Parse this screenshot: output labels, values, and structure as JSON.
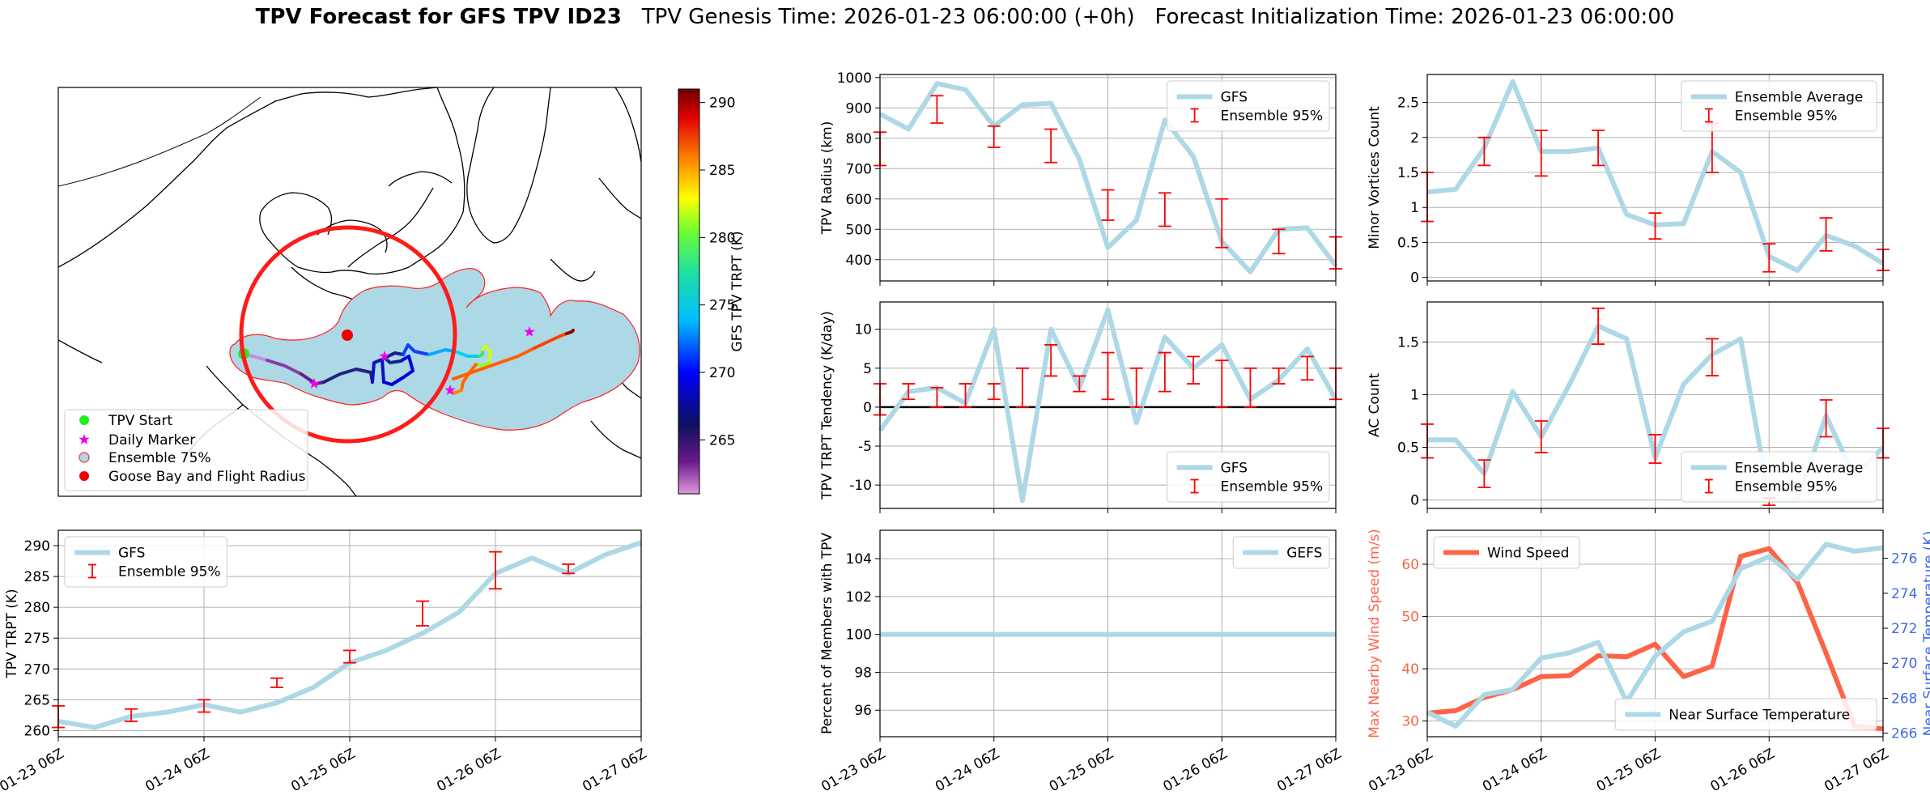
{
  "title": {
    "bold": "TPV Forecast for GFS TPV ID23",
    "genesis": "TPV Genesis Time: 2026-01-23 06:00:00 (+0h)",
    "init": "Forecast Initialization Time: 2026-01-23 06:00:00"
  },
  "colors": {
    "line": "#add8e6",
    "error": "#ff0000",
    "wind": "#ff6347",
    "temp_axis": "#4169e1",
    "plume": "#add8e6",
    "radius": "#ff1a1a"
  },
  "time_ticks": [
    "01-23 06Z",
    "01-24 06Z",
    "01-25 06Z",
    "01-26 06Z",
    "01-27 06Z"
  ],
  "map": {
    "colorbar_label": "GFS TPV TRPT (K)",
    "colorbar_ticks": [
      265,
      270,
      275,
      280,
      285,
      290
    ],
    "colorbar_range": [
      261,
      291
    ],
    "legend": [
      "TPV Start",
      "Daily Marker",
      "Ensemble 75%",
      "Goose Bay and Flight Radius"
    ]
  },
  "chart_data": [
    {
      "id": "radius",
      "type": "line",
      "ylabel": "TPV Radius (km)",
      "ylim": [
        330,
        1010
      ],
      "yticks": [
        400,
        500,
        600,
        700,
        800,
        900,
        1000
      ],
      "legend": [
        "GFS",
        "Ensemble 95%"
      ],
      "legend_pos": "upper-right",
      "series": [
        {
          "name": "GFS",
          "values": [
            880,
            830,
            980,
            960,
            840,
            910,
            915,
            730,
            440,
            530,
            860,
            740,
            460,
            360,
            500,
            505,
            380
          ]
        }
      ],
      "errorbars": [
        {
          "x": 0,
          "low": 710,
          "high": 820
        },
        {
          "x": 2,
          "low": 850,
          "high": 940
        },
        {
          "x": 4,
          "low": 770,
          "high": 840
        },
        {
          "x": 6,
          "low": 720,
          "high": 830
        },
        {
          "x": 8,
          "low": 530,
          "high": 630
        },
        {
          "x": 10,
          "low": 510,
          "high": 620
        },
        {
          "x": 12,
          "low": 440,
          "high": 600
        },
        {
          "x": 14,
          "low": 420,
          "high": 500
        },
        {
          "x": 16,
          "low": 370,
          "high": 475
        }
      ]
    },
    {
      "id": "minor",
      "type": "line",
      "ylabel": "Minor Vortices Count",
      "ylim": [
        -0.05,
        2.9
      ],
      "yticks": [
        0.0,
        0.5,
        1.0,
        1.5,
        2.0,
        2.5
      ],
      "legend": [
        "Ensemble Average",
        "Ensemble 95%"
      ],
      "legend_pos": "upper-right",
      "series": [
        {
          "name": "Ensemble Average",
          "values": [
            1.22,
            1.26,
            1.85,
            2.8,
            1.8,
            1.8,
            1.85,
            0.9,
            0.75,
            0.77,
            1.8,
            1.5,
            0.3,
            0.1,
            0.6,
            0.45,
            0.2
          ]
        }
      ],
      "errorbars": [
        {
          "x": 0,
          "low": 0.8,
          "high": 1.5
        },
        {
          "x": 2,
          "low": 1.6,
          "high": 2.0
        },
        {
          "x": 4,
          "low": 1.45,
          "high": 2.1
        },
        {
          "x": 6,
          "low": 1.6,
          "high": 2.1
        },
        {
          "x": 8,
          "low": 0.55,
          "high": 0.92
        },
        {
          "x": 10,
          "low": 1.5,
          "high": 2.2
        },
        {
          "x": 12,
          "low": 0.08,
          "high": 0.48
        },
        {
          "x": 14,
          "low": 0.38,
          "high": 0.85
        },
        {
          "x": 16,
          "low": 0.1,
          "high": 0.4
        }
      ]
    },
    {
      "id": "tendency",
      "type": "line",
      "ylabel": "TPV TRPT Tendency (K/day)",
      "ylim": [
        -13,
        13.5
      ],
      "yticks": [
        -10,
        -5,
        0,
        5,
        10
      ],
      "legend": [
        "GFS",
        "Ensemble 95%"
      ],
      "legend_pos": "lower-right",
      "series": [
        {
          "name": "GFS",
          "values": [
            -3,
            2,
            2.5,
            0.5,
            10,
            -12,
            10,
            2.5,
            12.5,
            -2,
            9,
            5,
            8,
            1,
            3.5,
            7.5,
            1
          ]
        }
      ],
      "errorbars": [
        {
          "x": 0,
          "low": -1,
          "high": 3
        },
        {
          "x": 1,
          "low": 1,
          "high": 3
        },
        {
          "x": 2,
          "low": 0,
          "high": 2.5
        },
        {
          "x": 3,
          "low": 0,
          "high": 3
        },
        {
          "x": 4,
          "low": 1,
          "high": 3
        },
        {
          "x": 5,
          "low": 0,
          "high": 5
        },
        {
          "x": 6,
          "low": 4,
          "high": 8
        },
        {
          "x": 7,
          "low": 2,
          "high": 4
        },
        {
          "x": 8,
          "low": 1,
          "high": 7
        },
        {
          "x": 9,
          "low": 0,
          "high": 5
        },
        {
          "x": 10,
          "low": 2,
          "high": 7
        },
        {
          "x": 11,
          "low": 3,
          "high": 6.5
        },
        {
          "x": 12,
          "low": 0,
          "high": 6
        },
        {
          "x": 13,
          "low": 0,
          "high": 5
        },
        {
          "x": 14,
          "low": 3,
          "high": 5
        },
        {
          "x": 15,
          "low": 3.5,
          "high": 6.5
        },
        {
          "x": 16,
          "low": 1,
          "high": 5
        }
      ]
    },
    {
      "id": "ac",
      "type": "line",
      "ylabel": "AC Count",
      "ylim": [
        -0.08,
        1.88
      ],
      "yticks": [
        0.0,
        0.5,
        1.0,
        1.5
      ],
      "legend": [
        "Ensemble Average",
        "Ensemble 95%"
      ],
      "legend_pos": "lower-right",
      "series": [
        {
          "name": "Ensemble Average",
          "values": [
            0.57,
            0.57,
            0.25,
            1.03,
            0.6,
            1.1,
            1.65,
            1.53,
            0.4,
            1.1,
            1.38,
            1.53,
            0.0,
            0.0,
            0.8,
            0.22,
            0.5
          ]
        }
      ],
      "errorbars": [
        {
          "x": 0,
          "low": 0.4,
          "high": 0.72
        },
        {
          "x": 2,
          "low": 0.12,
          "high": 0.38
        },
        {
          "x": 4,
          "low": 0.45,
          "high": 0.75
        },
        {
          "x": 6,
          "low": 1.48,
          "high": 1.82
        },
        {
          "x": 8,
          "low": 0.35,
          "high": 0.62
        },
        {
          "x": 10,
          "low": 1.18,
          "high": 1.53
        },
        {
          "x": 12,
          "low": -0.05,
          "high": 0.02
        },
        {
          "x": 14,
          "low": 0.6,
          "high": 0.95
        },
        {
          "x": 16,
          "low": 0.4,
          "high": 0.68
        }
      ]
    },
    {
      "id": "trpt",
      "type": "line",
      "ylabel": "TPV TRPT (K)",
      "ylim": [
        259,
        292.5
      ],
      "yticks": [
        260,
        265,
        270,
        275,
        280,
        285,
        290
      ],
      "legend": [
        "GFS",
        "Ensemble 95%"
      ],
      "legend_pos": "upper-left",
      "series": [
        {
          "name": "GFS",
          "values": [
            261.5,
            260.5,
            262.3,
            263,
            264.2,
            263,
            264.5,
            267,
            271,
            273,
            275.8,
            279.2,
            285.5,
            288,
            285.5,
            288.5,
            290.5
          ]
        }
      ],
      "errorbars": [
        {
          "x": 0,
          "low": 260.5,
          "high": 264
        },
        {
          "x": 2,
          "low": 261.5,
          "high": 263.5
        },
        {
          "x": 4,
          "low": 263,
          "high": 265
        },
        {
          "x": 6,
          "low": 267,
          "high": 268.5
        },
        {
          "x": 8,
          "low": 271,
          "high": 273
        },
        {
          "x": 10,
          "low": 277,
          "high": 281
        },
        {
          "x": 12,
          "low": 283,
          "high": 289
        },
        {
          "x": 14,
          "low": 285.5,
          "high": 287
        }
      ]
    },
    {
      "id": "percent",
      "type": "line",
      "ylabel": "Percent of Members with TPV",
      "ylim": [
        94.6,
        105.5
      ],
      "yticks": [
        96,
        98,
        100,
        102,
        104
      ],
      "legend": [
        "GEFS"
      ],
      "legend_pos": "upper-right",
      "series": [
        {
          "name": "GEFS",
          "values": [
            100,
            100,
            100,
            100,
            100,
            100,
            100,
            100,
            100,
            100,
            100,
            100,
            100,
            100,
            100,
            100,
            100
          ]
        }
      ],
      "errorbars": []
    },
    {
      "id": "wind",
      "type": "line",
      "ylabel": "Max Nearby Wind Speed (m/s)",
      "ylabel2": "Near Surface Temperature (K)",
      "ylim": [
        27,
        66.5
      ],
      "yticks": [
        30,
        40,
        50,
        60
      ],
      "ylim2": [
        265.8,
        277.6
      ],
      "yticks2": [
        266,
        268,
        270,
        272,
        274,
        276
      ],
      "legend": [
        "Wind Speed"
      ],
      "legend2": [
        "Near Surface Temperature"
      ],
      "series": [
        {
          "name": "Wind Speed",
          "axis": "left",
          "values": [
            31.5,
            32,
            34.5,
            36,
            38.5,
            38.7,
            42.5,
            42.3,
            44.7,
            38.5,
            40.5,
            61.5,
            63,
            56.5,
            43,
            29,
            28.5
          ]
        },
        {
          "name": "Near Surface Temperature",
          "axis": "right",
          "values": [
            267.2,
            266.4,
            268.2,
            268.5,
            270.3,
            270.6,
            271.2,
            267.8,
            270.4,
            271.8,
            272.4,
            275.4,
            276.1,
            274.8,
            276.8,
            276.4,
            276.6
          ]
        }
      ]
    }
  ]
}
